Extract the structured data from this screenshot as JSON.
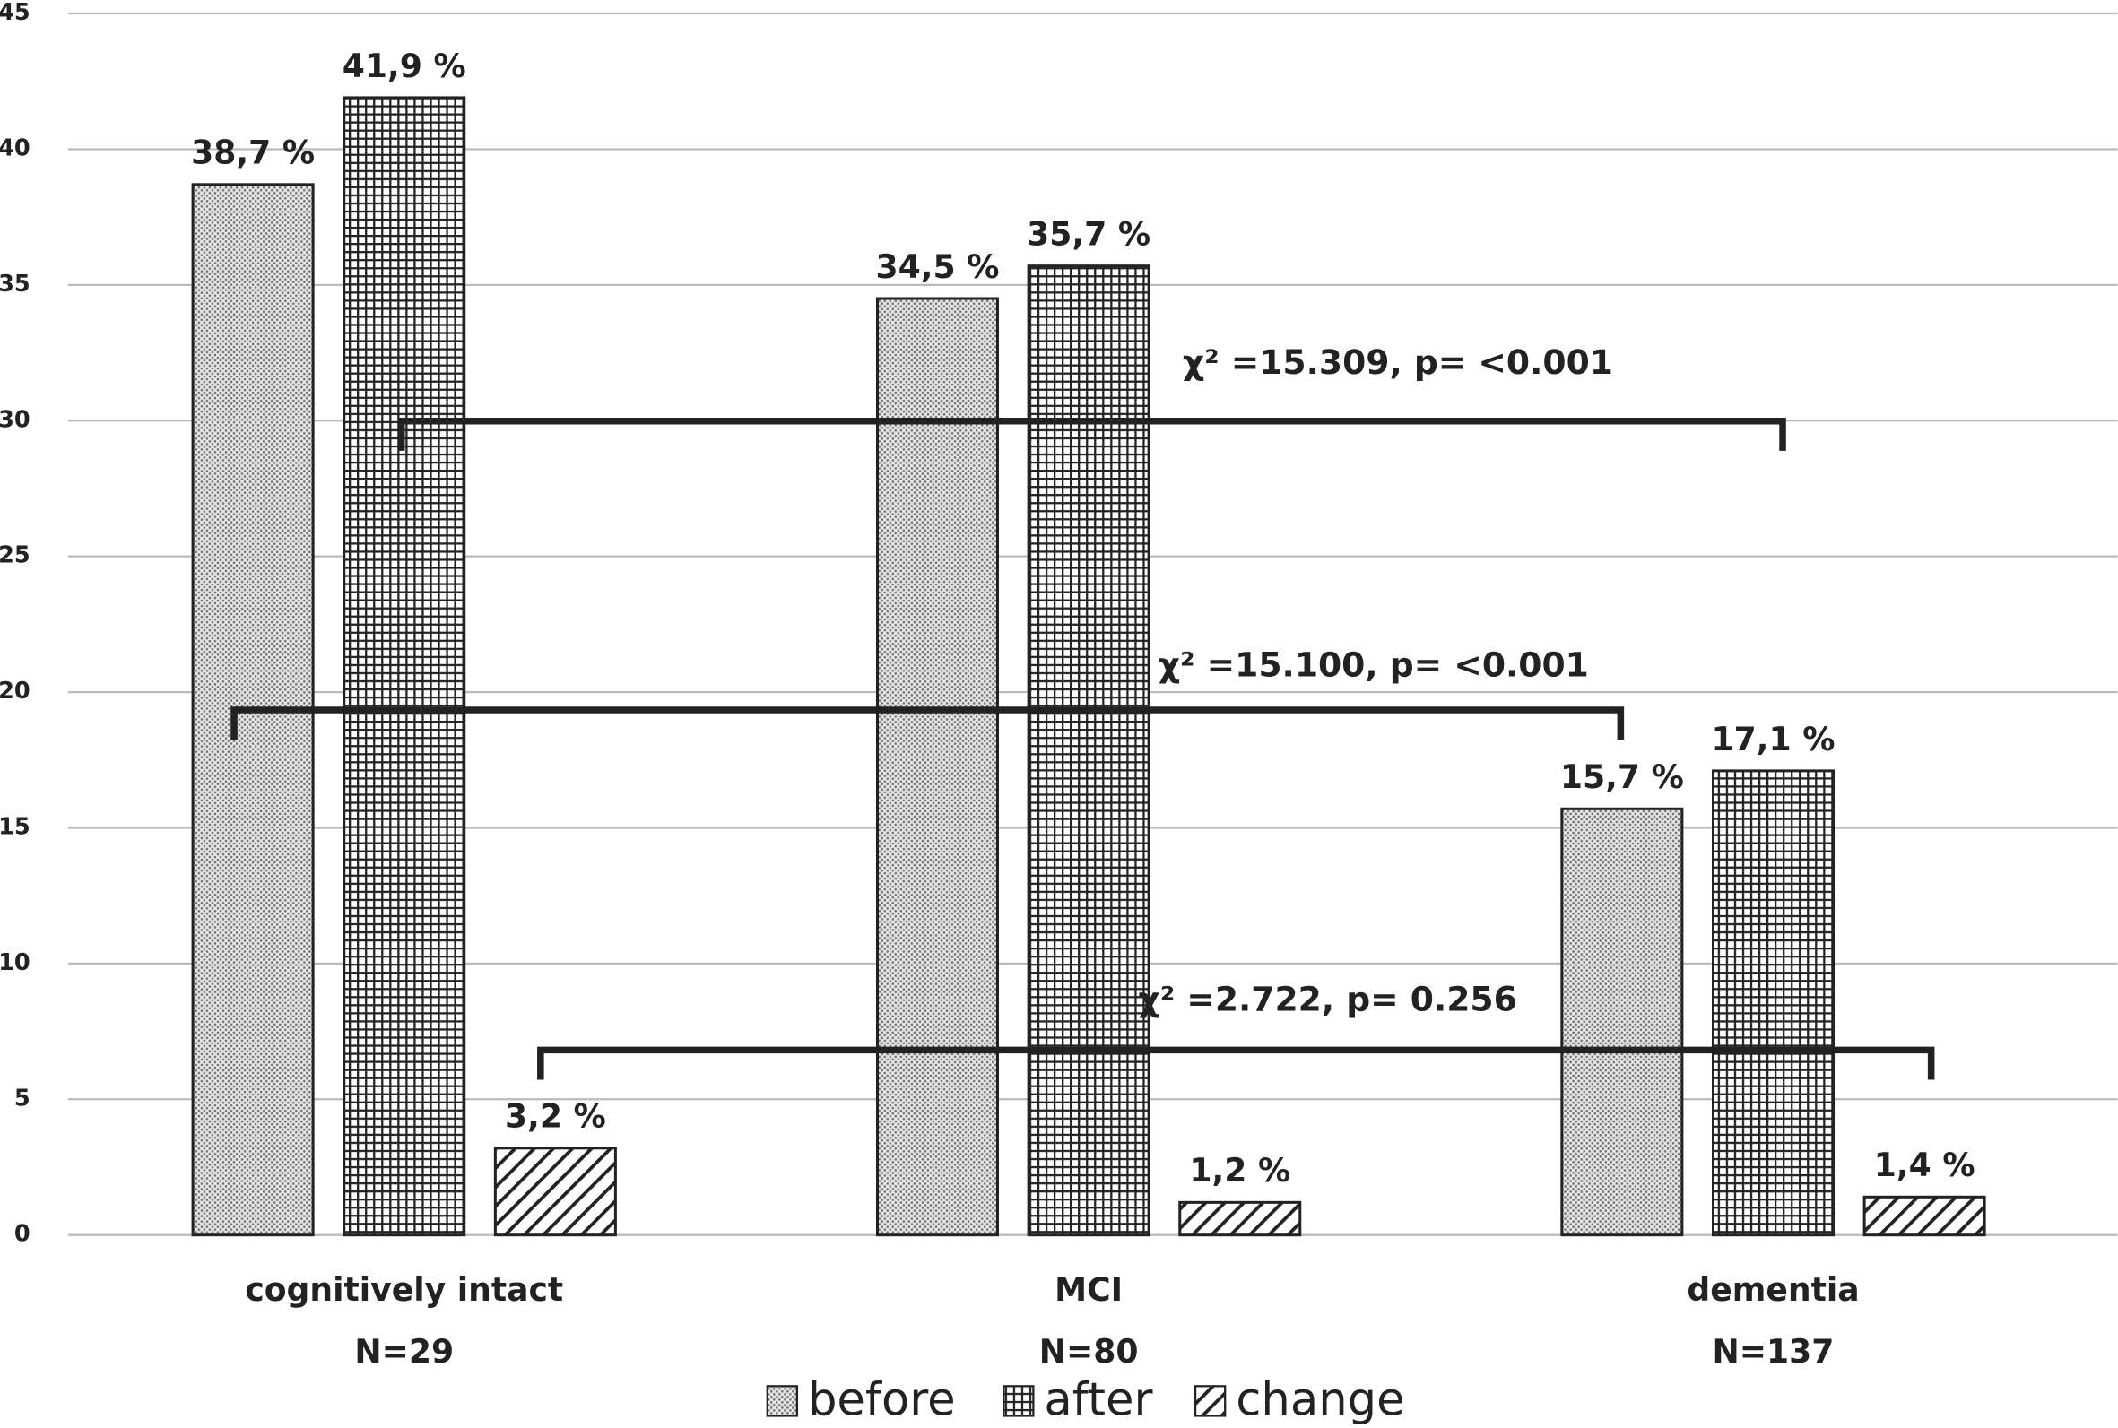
{
  "chart_data": {
    "type": "bar",
    "categories": [
      "cognitively intact",
      "MCI",
      "dementia"
    ],
    "category_notes": [
      "N=29",
      "N=80",
      "N=137"
    ],
    "series": [
      {
        "name": "before",
        "pattern": "dots",
        "values": [
          38.7,
          34.5,
          15.7
        ],
        "value_labels": [
          "38,7 %",
          "34,5 %",
          "15,7 %"
        ]
      },
      {
        "name": "after",
        "pattern": "grid",
        "values": [
          41.9,
          35.7,
          17.1
        ],
        "value_labels": [
          "41,9 %",
          "35,7 %",
          "17,1 %"
        ]
      },
      {
        "name": "change",
        "pattern": "hatch",
        "values": [
          3.2,
          1.2,
          1.4
        ],
        "value_labels": [
          "3,2 %",
          "1,2 %",
          "1,4 %"
        ]
      }
    ],
    "annotations": [
      "χ² =15.309, p= <0.001",
      "χ² =15.100, p= <0.001",
      "χ² =2.722, p= 0.256"
    ],
    "ylim": [
      0,
      45
    ],
    "yticks": [
      0,
      5,
      10,
      15,
      20,
      25,
      30,
      35,
      40,
      45
    ],
    "grid": true
  }
}
